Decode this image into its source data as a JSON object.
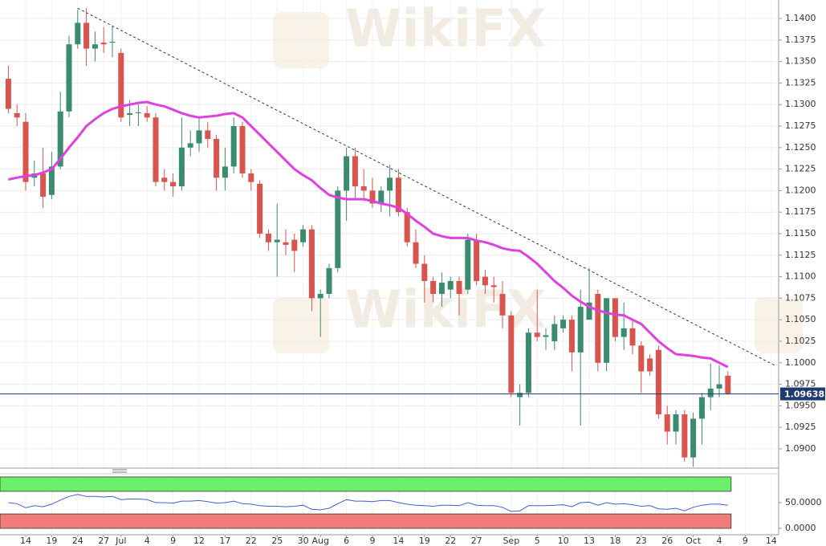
{
  "chart_data": {
    "type": "candlestick",
    "watermark": "WikiFX",
    "xlim": [
      -0.963,
      88.85
    ],
    "ylim": [
      1.08785,
      1.14215
    ],
    "yticks": [
      {
        "value": 1.14,
        "label": "1.1400"
      },
      1.1375,
      {
        "value": 1.135,
        "label": "1.1350"
      },
      1.1325,
      {
        "value": 1.13,
        "label": "1.1300"
      },
      1.1275,
      {
        "value": 1.125,
        "label": "1.1250"
      },
      1.1225,
      {
        "value": 1.12,
        "label": "1.1200"
      },
      1.1175,
      {
        "value": 1.115,
        "label": "1.1150"
      },
      1.1125,
      {
        "value": 1.11,
        "label": "1.1100"
      },
      1.1075,
      {
        "value": 1.105,
        "label": "1.1050"
      },
      1.1025,
      {
        "value": 1.1,
        "label": "1.1000"
      },
      1.0975,
      {
        "value": 1.095,
        "label": "1.0950"
      },
      1.0925,
      {
        "value": 1.09,
        "label": "1.0900"
      }
    ],
    "xticks": [
      {
        "value": 2,
        "label": "14"
      },
      {
        "value": 5,
        "label": "19"
      },
      {
        "value": 8,
        "label": "24"
      },
      {
        "value": 11,
        "label": "27"
      },
      {
        "value": 13,
        "label": "Jul"
      },
      {
        "value": 16,
        "label": "4"
      },
      {
        "value": 19,
        "label": "9"
      },
      {
        "value": 22,
        "label": "12"
      },
      {
        "value": 25,
        "label": "17"
      },
      {
        "value": 28,
        "label": "22"
      },
      {
        "value": 31,
        "label": "25"
      },
      {
        "value": 34,
        "label": "30"
      },
      {
        "value": 36,
        "label": "Aug"
      },
      {
        "value": 39,
        "label": "6"
      },
      {
        "value": 42,
        "label": "9"
      },
      {
        "value": 45,
        "label": "14"
      },
      {
        "value": 48,
        "label": "19"
      },
      {
        "value": 51,
        "label": "22"
      },
      {
        "value": 54,
        "label": "27"
      },
      {
        "value": 58,
        "label": "Sep"
      },
      {
        "value": 61,
        "label": "5"
      },
      {
        "value": 64,
        "label": "10"
      },
      {
        "value": 67,
        "label": "13"
      },
      {
        "value": 70,
        "label": "18"
      },
      {
        "value": 73,
        "label": "23"
      },
      {
        "value": 76,
        "label": "26"
      },
      {
        "value": 79,
        "label": "Oct"
      },
      {
        "value": 82,
        "label": "4"
      },
      {
        "value": 85,
        "label": "9"
      },
      {
        "value": 88,
        "label": "14"
      }
    ],
    "up_color": "#3b8c6e",
    "down_color": "#d9544d",
    "open": [
      1.133,
      1.129,
      1.128,
      1.1215,
      1.122,
      1.1195,
      1.1228,
      1.1292,
      1.137,
      1.1395,
      1.1365,
      1.1372,
      1.1372,
      1.136,
      1.1288,
      1.129,
      1.129,
      1.1285,
      1.1215,
      1.121,
      1.1205,
      1.125,
      1.1255,
      1.127,
      1.126,
      1.1215,
      1.1228,
      1.1275,
      1.122,
      1.1208,
      1.115,
      1.114,
      1.114,
      1.1143,
      1.114,
      1.1155,
      1.1075,
      1.108,
      1.111,
      1.12,
      1.124,
      1.1205,
      1.12,
      1.1185,
      1.12,
      1.1215,
      1.1175,
      1.114,
      1.1115,
      1.1095,
      1.108,
      1.1085,
      1.1095,
      1.1085,
      1.1143,
      1.11,
      1.109,
      1.108,
      1.1055,
      1.096,
      1.0965,
      1.1035,
      1.103,
      1.1025,
      1.104,
      1.105,
      1.1012,
      1.105,
      1.108,
      1.1,
      1.1075,
      1.103,
      1.104,
      1.102,
      1.1005,
      1.1015,
      1.094,
      1.092,
      1.094,
      1.089,
      1.0935,
      1.096,
      1.097,
      1.0985
    ],
    "high": [
      1.1345,
      1.13,
      1.129,
      1.1235,
      1.125,
      1.1245,
      1.1315,
      1.138,
      1.141,
      1.1412,
      1.1385,
      1.139,
      1.1392,
      1.1365,
      1.1305,
      1.13,
      1.1298,
      1.129,
      1.1225,
      1.122,
      1.1285,
      1.127,
      1.1285,
      1.128,
      1.1265,
      1.125,
      1.1285,
      1.128,
      1.1225,
      1.1212,
      1.1155,
      1.1185,
      1.1155,
      1.115,
      1.116,
      1.116,
      1.1085,
      1.1115,
      1.1205,
      1.125,
      1.125,
      1.1225,
      1.1215,
      1.1205,
      1.123,
      1.1225,
      1.118,
      1.1155,
      1.1125,
      1.11,
      1.1105,
      1.11,
      1.11,
      1.115,
      1.115,
      1.1108,
      1.11,
      1.1095,
      1.106,
      1.0975,
      1.104,
      1.1085,
      1.104,
      1.1055,
      1.1055,
      1.1055,
      1.1085,
      1.111,
      1.1085,
      1.1075,
      1.1075,
      1.107,
      1.105,
      1.1025,
      1.101,
      1.102,
      1.095,
      1.0945,
      1.0945,
      1.0942,
      1.0965,
      1.0999,
      1.0997,
      1.099
    ],
    "low": [
      1.129,
      1.1275,
      1.12,
      1.1205,
      1.118,
      1.119,
      1.1225,
      1.1285,
      1.1365,
      1.1345,
      1.135,
      1.136,
      1.1355,
      1.128,
      1.1275,
      1.1275,
      1.128,
      1.1205,
      1.12,
      1.1193,
      1.12,
      1.124,
      1.1245,
      1.125,
      1.12,
      1.12,
      1.122,
      1.1215,
      1.12,
      1.1145,
      1.113,
      1.11,
      1.1125,
      1.1105,
      1.1135,
      1.106,
      1.103,
      1.1075,
      1.1105,
      1.1165,
      1.119,
      1.119,
      1.118,
      1.1175,
      1.117,
      1.117,
      1.1135,
      1.111,
      1.107,
      1.107,
      1.1065,
      1.1075,
      1.1055,
      1.108,
      1.109,
      1.108,
      1.107,
      1.104,
      1.096,
      1.0927,
      1.096,
      1.1025,
      1.1015,
      1.1015,
      1.1035,
      1.099,
      1.0927,
      1.105,
      1.099,
      1.099,
      1.1025,
      1.1015,
      1.101,
      1.0965,
      1.0985,
      1.0935,
      1.0905,
      1.0905,
      1.0885,
      1.0879,
      1.0905,
      1.0945,
      1.096,
      1.0963
    ],
    "close": [
      1.1295,
      1.1285,
      1.121,
      1.122,
      1.1193,
      1.1228,
      1.1292,
      1.137,
      1.1395,
      1.1365,
      1.137,
      1.137,
      1.1373,
      1.1285,
      1.129,
      1.1291,
      1.1285,
      1.121,
      1.121,
      1.1205,
      1.125,
      1.1255,
      1.127,
      1.126,
      1.1215,
      1.1228,
      1.1275,
      1.122,
      1.121,
      1.115,
      1.114,
      1.1143,
      1.1137,
      1.113,
      1.1155,
      1.1075,
      1.108,
      1.111,
      1.12,
      1.124,
      1.1205,
      1.12,
      1.1185,
      1.12,
      1.1215,
      1.1175,
      1.114,
      1.1115,
      1.1095,
      1.108,
      1.1093,
      1.1095,
      1.108,
      1.1143,
      1.1095,
      1.109,
      1.1088,
      1.1055,
      1.0965,
      1.0965,
      1.1035,
      1.103,
      1.1032,
      1.1045,
      1.105,
      1.1012,
      1.1065,
      1.107,
      1.1,
      1.1075,
      1.103,
      1.104,
      1.102,
      1.099,
      1.099,
      1.094,
      1.092,
      1.094,
      1.089,
      1.0935,
      1.096,
      1.097,
      1.0975,
      1.0964
    ],
    "sma": {
      "color": "#e040e0",
      "values": [
        1.1213,
        1.1215,
        1.1217,
        1.1218,
        1.1221,
        1.1225,
        1.1237,
        1.125,
        1.1262,
        1.1275,
        1.1283,
        1.129,
        1.1295,
        1.1298,
        1.13,
        1.1302,
        1.1303,
        1.13,
        1.1298,
        1.1294,
        1.129,
        1.1287,
        1.1285,
        1.1286,
        1.1287,
        1.1289,
        1.129,
        1.1285,
        1.1275,
        1.1265,
        1.1255,
        1.1245,
        1.1235,
        1.1225,
        1.1218,
        1.1212,
        1.1203,
        1.1195,
        1.1192,
        1.119,
        1.119,
        1.119,
        1.1188,
        1.1185,
        1.1183,
        1.118,
        1.1173,
        1.1165,
        1.1158,
        1.115,
        1.1147,
        1.1145,
        1.1145,
        1.1145,
        1.1142,
        1.114,
        1.1137,
        1.1133,
        1.1131,
        1.113,
        1.1123,
        1.1115,
        1.1105,
        1.1095,
        1.1087,
        1.1078,
        1.1071,
        1.1065,
        1.1061,
        1.1058,
        1.1056,
        1.1055,
        1.105,
        1.1045,
        1.1035,
        1.1025,
        1.1017,
        1.101,
        1.1009,
        1.1008,
        1.1006,
        1.1005,
        1.1,
        1.0995
      ]
    },
    "trendline": {
      "color": "#333333",
      "x": [
        8,
        88.4
      ],
      "values": [
        1.1412,
        1.0997
      ]
    },
    "last_price": 1.09638,
    "last_price_color": "#1e3a6e",
    "oscillator": {
      "color": "#3d5fd6",
      "ylim": [
        -12.5,
        106.25
      ],
      "yticks": [
        {
          "value": 50,
          "label": "50.0000"
        },
        {
          "value": 0,
          "label": "0.0000"
        }
      ],
      "zones": [
        [
          72,
          100
        ],
        [
          0,
          28
        ]
      ],
      "zone_colors": [
        "#6cf06c",
        "#f07c7c"
      ],
      "values": [
        50,
        48,
        40,
        44,
        42,
        47,
        55,
        62,
        66,
        62,
        62,
        61,
        62,
        56,
        57,
        57,
        56,
        50,
        50,
        49,
        53,
        53,
        54,
        52,
        49,
        50,
        53,
        48,
        47,
        44,
        43,
        43,
        42,
        43,
        45,
        37,
        36,
        39,
        48,
        56,
        53,
        53,
        52,
        54,
        54,
        50,
        47,
        45,
        44,
        43,
        45,
        45,
        44,
        50,
        45,
        44,
        44,
        41,
        33,
        34,
        44,
        44,
        44,
        45,
        46,
        42,
        50,
        51,
        45,
        50,
        47,
        48,
        46,
        43,
        44,
        38,
        37,
        39,
        34,
        41,
        45,
        47,
        47,
        45
      ]
    }
  }
}
